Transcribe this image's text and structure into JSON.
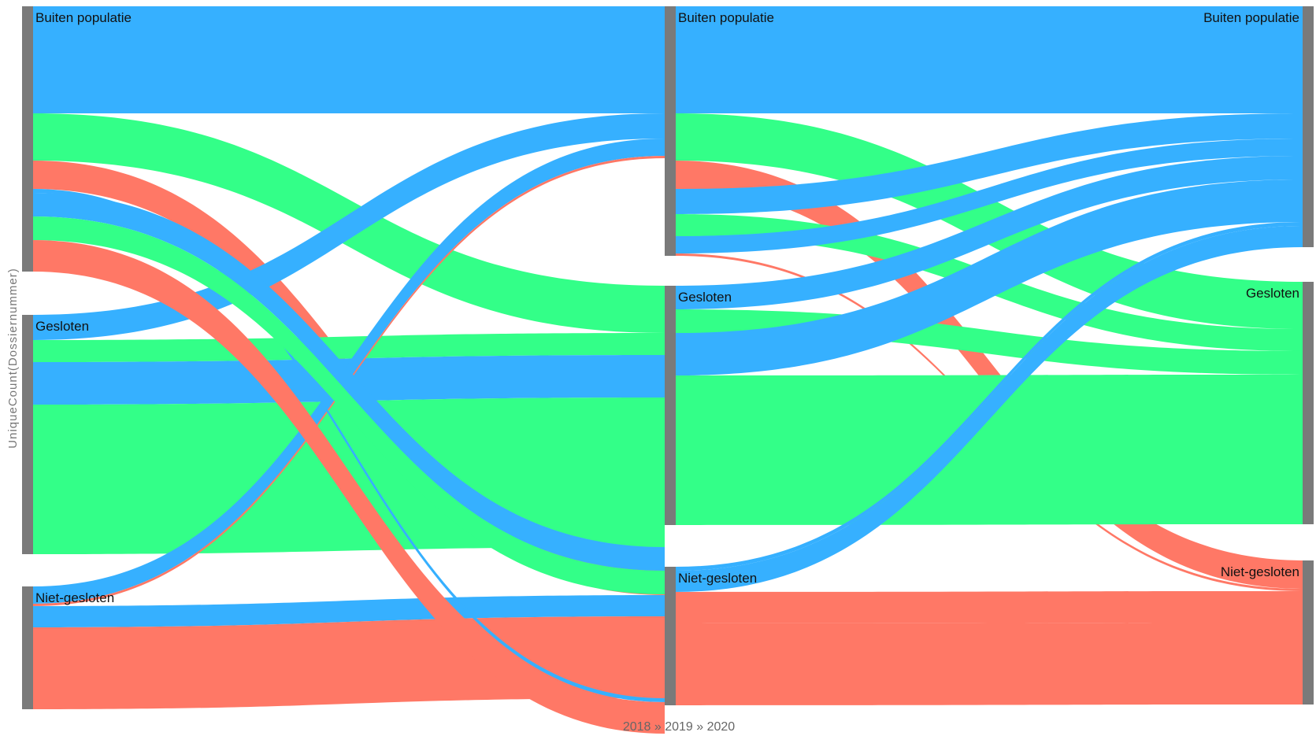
{
  "chart_data": {
    "type": "sankey",
    "ylabel": "UniqueCount(Dossiernummer)",
    "xlabel": "2018 » 2019 » 2020",
    "stages": [
      "2018",
      "2019",
      "2020"
    ],
    "categories": [
      "Buiten populatie",
      "Gesloten",
      "Niet-gesloten"
    ],
    "colors": {
      "Buiten populatie": "#36b0ff",
      "Gesloten": "#33ff88",
      "Niet-gesloten": "#ff7866",
      "node": "#7a7a7a"
    },
    "flows": [
      {
        "stage": 0,
        "source": "Buiten populatie",
        "target": "Buiten populatie",
        "value": 136,
        "color_group": "Buiten populatie"
      },
      {
        "stage": 0,
        "source": "Buiten populatie",
        "target": "Gesloten",
        "value": 60,
        "color_group": "Gesloten"
      },
      {
        "stage": 0,
        "source": "Buiten populatie",
        "target": "Niet-gesloten",
        "value": 36,
        "color_group": "Niet-gesloten"
      },
      {
        "stage": 0,
        "source": "Gesloten",
        "target": "Buiten populatie",
        "value": 32,
        "color_group": "Buiten populatie"
      },
      {
        "stage": 0,
        "source": "Gesloten",
        "target": "Gesloten",
        "value": 28,
        "color_group": "Gesloten"
      },
      {
        "stage": 0,
        "source": "Gesloten",
        "target": "Gesloten",
        "value": 54,
        "color_group": "Buiten populatie"
      },
      {
        "stage": 0,
        "source": "Gesloten",
        "target": "Gesloten",
        "value": 190,
        "color_group": "Gesloten"
      },
      {
        "stage": 0,
        "source": "Niet-gesloten",
        "target": "Buiten populatie",
        "value": 22,
        "color_group": "Buiten populatie"
      },
      {
        "stage": 0,
        "source": "Niet-gesloten",
        "target": "Buiten populatie",
        "value": 3,
        "color_group": "Niet-gesloten"
      },
      {
        "stage": 0,
        "source": "Niet-gesloten",
        "target": "Niet-gesloten",
        "value": 27,
        "color_group": "Buiten populatie"
      },
      {
        "stage": 0,
        "source": "Niet-gesloten",
        "target": "Niet-gesloten",
        "value": 104,
        "color_group": "Niet-gesloten"
      },
      {
        "stage": 0,
        "source": "Buiten populatie",
        "target": "Niet-gesloten",
        "value": 5,
        "color_group": "Buiten populatie"
      },
      {
        "stage": 0,
        "source": "Buiten populatie",
        "target": "Gesloten",
        "value": 30,
        "color_group": "Buiten populatie"
      },
      {
        "stage": 0,
        "source": "Buiten populatie",
        "target": "Gesloten",
        "value": 30,
        "color_group": "Gesloten"
      },
      {
        "stage": 0,
        "source": "Buiten populatie",
        "target": "Niet-gesloten",
        "value": 40,
        "color_group": "Niet-gesloten"
      },
      {
        "stage": 1,
        "source": "Buiten populatie",
        "target": "Buiten populatie",
        "value": 136,
        "color_group": "Buiten populatie"
      },
      {
        "stage": 1,
        "source": "Buiten populatie",
        "target": "Gesloten",
        "value": 60,
        "color_group": "Gesloten"
      },
      {
        "stage": 1,
        "source": "Buiten populatie",
        "target": "Niet-gesloten",
        "value": 36,
        "color_group": "Niet-gesloten"
      },
      {
        "stage": 1,
        "source": "Buiten populatie",
        "target": "Buiten populatie",
        "value": 32,
        "color_group": "Buiten populatie"
      },
      {
        "stage": 1,
        "source": "Buiten populatie",
        "target": "Gesloten",
        "value": 28,
        "color_group": "Gesloten"
      },
      {
        "stage": 1,
        "source": "Buiten populatie",
        "target": "Buiten populatie",
        "value": 22,
        "color_group": "Buiten populatie"
      },
      {
        "stage": 1,
        "source": "Buiten populatie",
        "target": "Niet-gesloten",
        "value": 3,
        "color_group": "Niet-gesloten"
      },
      {
        "stage": 1,
        "source": "Gesloten",
        "target": "Buiten populatie",
        "value": 30,
        "color_group": "Buiten populatie"
      },
      {
        "stage": 1,
        "source": "Gesloten",
        "target": "Gesloten",
        "value": 30,
        "color_group": "Gesloten"
      },
      {
        "stage": 1,
        "source": "Gesloten",
        "target": "Buiten populatie",
        "value": 54,
        "color_group": "Buiten populatie"
      },
      {
        "stage": 1,
        "source": "Gesloten",
        "target": "Gesloten",
        "value": 190,
        "color_group": "Gesloten"
      },
      {
        "stage": 1,
        "source": "Niet-gesloten",
        "target": "Buiten populatie",
        "value": 5,
        "color_group": "Buiten populatie"
      },
      {
        "stage": 1,
        "source": "Niet-gesloten",
        "target": "Buiten populatie",
        "value": 27,
        "color_group": "Buiten populatie"
      },
      {
        "stage": 1,
        "source": "Niet-gesloten",
        "target": "Niet-gesloten",
        "value": 40,
        "color_group": "Niet-gesloten"
      },
      {
        "stage": 1,
        "source": "Niet-gesloten",
        "target": "Niet-gesloten",
        "value": 104,
        "color_group": "Niet-gesloten"
      }
    ]
  }
}
